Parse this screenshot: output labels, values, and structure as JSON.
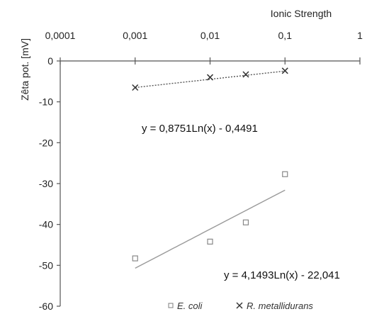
{
  "chart_data": {
    "type": "scatter",
    "title": "",
    "xlabel": "Ionic Strength",
    "ylabel": "Zêta pot. [mV]",
    "x_scale": "log",
    "xlim": [
      0.0001,
      1
    ],
    "ylim": [
      -60,
      0
    ],
    "x_ticks": [
      "0,0001",
      "0,001",
      "0,01",
      "0,1",
      "1"
    ],
    "x_tick_values": [
      0.0001,
      0.001,
      0.01,
      0.1,
      1
    ],
    "y_ticks": [
      "0",
      "-10",
      "-20",
      "-30",
      "-40",
      "-50",
      "-60"
    ],
    "y_tick_values": [
      0,
      -10,
      -20,
      -30,
      -40,
      -50,
      -60
    ],
    "grid": false,
    "legend_position": "bottom",
    "series": [
      {
        "name": "E. coli",
        "marker": "open-square",
        "color": "#888888",
        "x": [
          0.001,
          0.01,
          0.03,
          0.1
        ],
        "y": [
          -48.3,
          -44.2,
          -39.5,
          -27.7
        ],
        "trendline": {
          "equation": "y = 4,1493Ln(x) - 22,041",
          "a": 4.1493,
          "b": -22.041,
          "x_range": [
            0.001,
            0.1
          ],
          "style": "solid",
          "color": "#9a9a9a"
        }
      },
      {
        "name": "R. metallidurans",
        "marker": "x",
        "color": "#333333",
        "x": [
          0.001,
          0.01,
          0.03,
          0.1
        ],
        "y": [
          -6.5,
          -4.0,
          -3.3,
          -2.4
        ],
        "trendline": {
          "equation": "y = 0,8751Ln(x) - 0,4491",
          "a": 0.8751,
          "b": -0.4491,
          "x_range": [
            0.001,
            0.1
          ],
          "style": "dotted",
          "color": "#555555"
        }
      }
    ]
  }
}
